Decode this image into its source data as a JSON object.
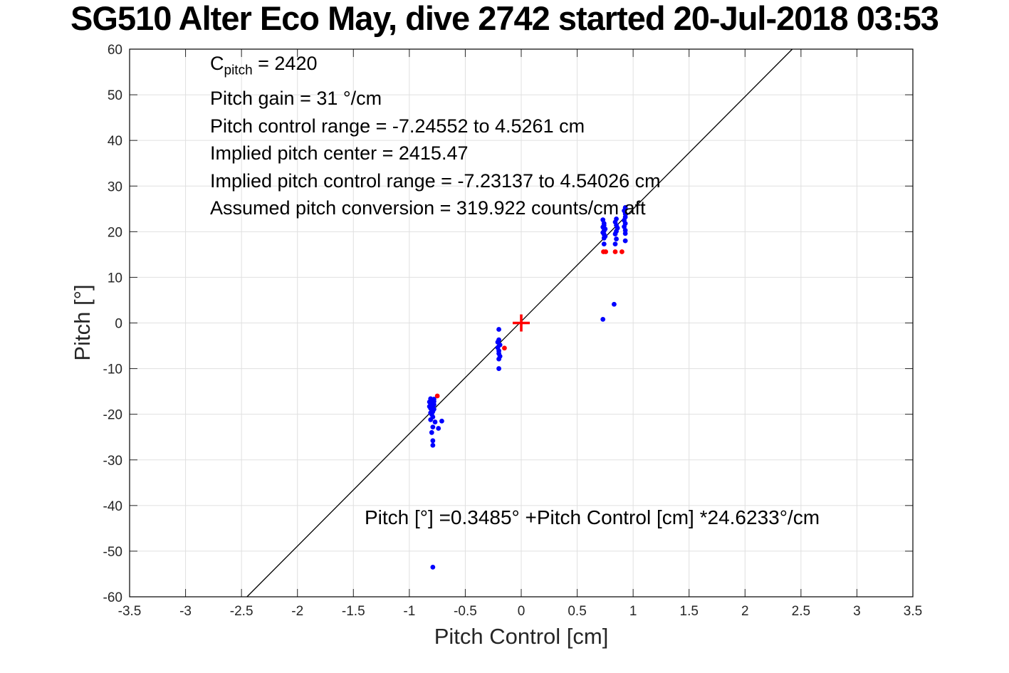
{
  "title": "SG510 Alter Eco May, dive 2742 started 20-Jul-2018 03:53",
  "annotation": {
    "c_pre": "C",
    "c_sub": "pitch",
    "c_post": " = 2420",
    "lines": [
      "Pitch gain = 31 °/cm",
      "Pitch control range = -7.24552 to 4.5261 cm",
      "Implied pitch center = 2415.47",
      "Implied pitch control range = -7.23137 to 4.54026 cm",
      "Assumed pitch conversion = 319.922 counts/cm aft"
    ]
  },
  "equation": "Pitch [°] =0.3485° +Pitch Control [cm] *24.6233°/cm",
  "chart_data": {
    "type": "scatter",
    "title": "SG510 Alter Eco May, dive 2742 started 20-Jul-2018 03:53",
    "xlabel": "Pitch Control [cm]",
    "ylabel": "Pitch [°]",
    "xlim": [
      -3.5,
      3.5
    ],
    "ylim": [
      -60,
      60
    ],
    "grid": true,
    "x_ticks": [
      "-3.5",
      "-3",
      "-2.5",
      "-2",
      "-1.5",
      "-1",
      "-0.5",
      "0",
      "0.5",
      "1",
      "1.5",
      "2",
      "2.5",
      "3",
      "3.5"
    ],
    "y_ticks": [
      "-60",
      "-50",
      "-40",
      "-30",
      "-20",
      "-10",
      "0",
      "10",
      "20",
      "30",
      "40",
      "50",
      "60"
    ],
    "colors": {
      "samples": "#0000ff",
      "flagged": "#ff0000",
      "fit": "#000000",
      "grid": "#e0e0e0",
      "axis": "#262626",
      "box": "#000000"
    },
    "fit_line": {
      "intercept_deg": 0.3485,
      "slope_deg_per_cm": 24.6233,
      "x_start": -2.4509,
      "y_start": -60,
      "x_end": 2.4225,
      "y_end": 60
    },
    "series": [
      {
        "name": "pitch-samples-blue",
        "marker": "dot",
        "color_key": "samples",
        "points": [
          [
            -0.81,
            -16.6
          ],
          [
            -0.78,
            -16.7
          ],
          [
            -0.8,
            -17.0
          ],
          [
            -0.78,
            -17.2
          ],
          [
            -0.82,
            -17.3
          ],
          [
            -0.79,
            -17.5
          ],
          [
            -0.81,
            -17.7
          ],
          [
            -0.78,
            -17.9
          ],
          [
            -0.8,
            -18.1
          ],
          [
            -0.82,
            -18.3
          ],
          [
            -0.79,
            -18.5
          ],
          [
            -0.81,
            -18.7
          ],
          [
            -0.78,
            -18.9
          ],
          [
            -0.8,
            -19.1
          ],
          [
            -0.79,
            -19.4
          ],
          [
            -0.81,
            -19.7
          ],
          [
            -0.8,
            -20.0
          ],
          [
            -0.79,
            -20.6
          ],
          [
            -0.81,
            -21.2
          ],
          [
            -0.77,
            -21.7
          ],
          [
            -0.71,
            -21.5
          ],
          [
            -0.79,
            -22.8
          ],
          [
            -0.74,
            -23.1
          ],
          [
            -0.8,
            -24.0
          ],
          [
            -0.79,
            -25.8
          ],
          [
            -0.79,
            -26.8
          ],
          [
            -0.79,
            -53.5
          ],
          [
            -0.2,
            -1.4
          ],
          [
            -0.2,
            -3.7
          ],
          [
            -0.21,
            -4.2
          ],
          [
            -0.19,
            -4.8
          ],
          [
            -0.21,
            -5.4
          ],
          [
            -0.2,
            -6.1
          ],
          [
            -0.2,
            -6.7
          ],
          [
            -0.19,
            -7.3
          ],
          [
            -0.2,
            -7.9
          ],
          [
            -0.2,
            -10.0
          ],
          [
            0.73,
            22.6
          ],
          [
            0.74,
            21.8
          ],
          [
            0.74,
            21.4
          ],
          [
            0.73,
            21.0
          ],
          [
            0.75,
            20.6
          ],
          [
            0.74,
            20.2
          ],
          [
            0.73,
            19.8
          ],
          [
            0.74,
            19.4
          ],
          [
            0.75,
            19.0
          ],
          [
            0.74,
            18.6
          ],
          [
            0.74,
            17.3
          ],
          [
            0.85,
            22.8
          ],
          [
            0.84,
            22.1
          ],
          [
            0.85,
            21.4
          ],
          [
            0.86,
            20.8
          ],
          [
            0.85,
            20.1
          ],
          [
            0.84,
            19.5
          ],
          [
            0.85,
            18.4
          ],
          [
            0.84,
            17.3
          ],
          [
            0.93,
            25.3
          ],
          [
            0.92,
            24.6
          ],
          [
            0.93,
            23.9
          ],
          [
            0.93,
            23.2
          ],
          [
            0.92,
            22.5
          ],
          [
            0.93,
            21.8
          ],
          [
            0.92,
            21.1
          ],
          [
            0.93,
            20.3
          ],
          [
            0.93,
            19.6
          ],
          [
            0.93,
            18.0
          ],
          [
            0.73,
            0.8
          ],
          [
            0.83,
            4.1
          ]
        ]
      },
      {
        "name": "flagged-samples-red",
        "marker": "dot",
        "color_key": "flagged",
        "points": [
          [
            -0.75,
            -16.0
          ],
          [
            -0.15,
            -5.5
          ],
          [
            0.735,
            15.6
          ],
          [
            0.755,
            15.6
          ],
          [
            0.84,
            15.6
          ],
          [
            0.9,
            15.6
          ]
        ]
      },
      {
        "name": "implied-center-red-plus",
        "marker": "plus",
        "color_key": "flagged",
        "points": [
          [
            0,
            0
          ]
        ]
      }
    ]
  }
}
